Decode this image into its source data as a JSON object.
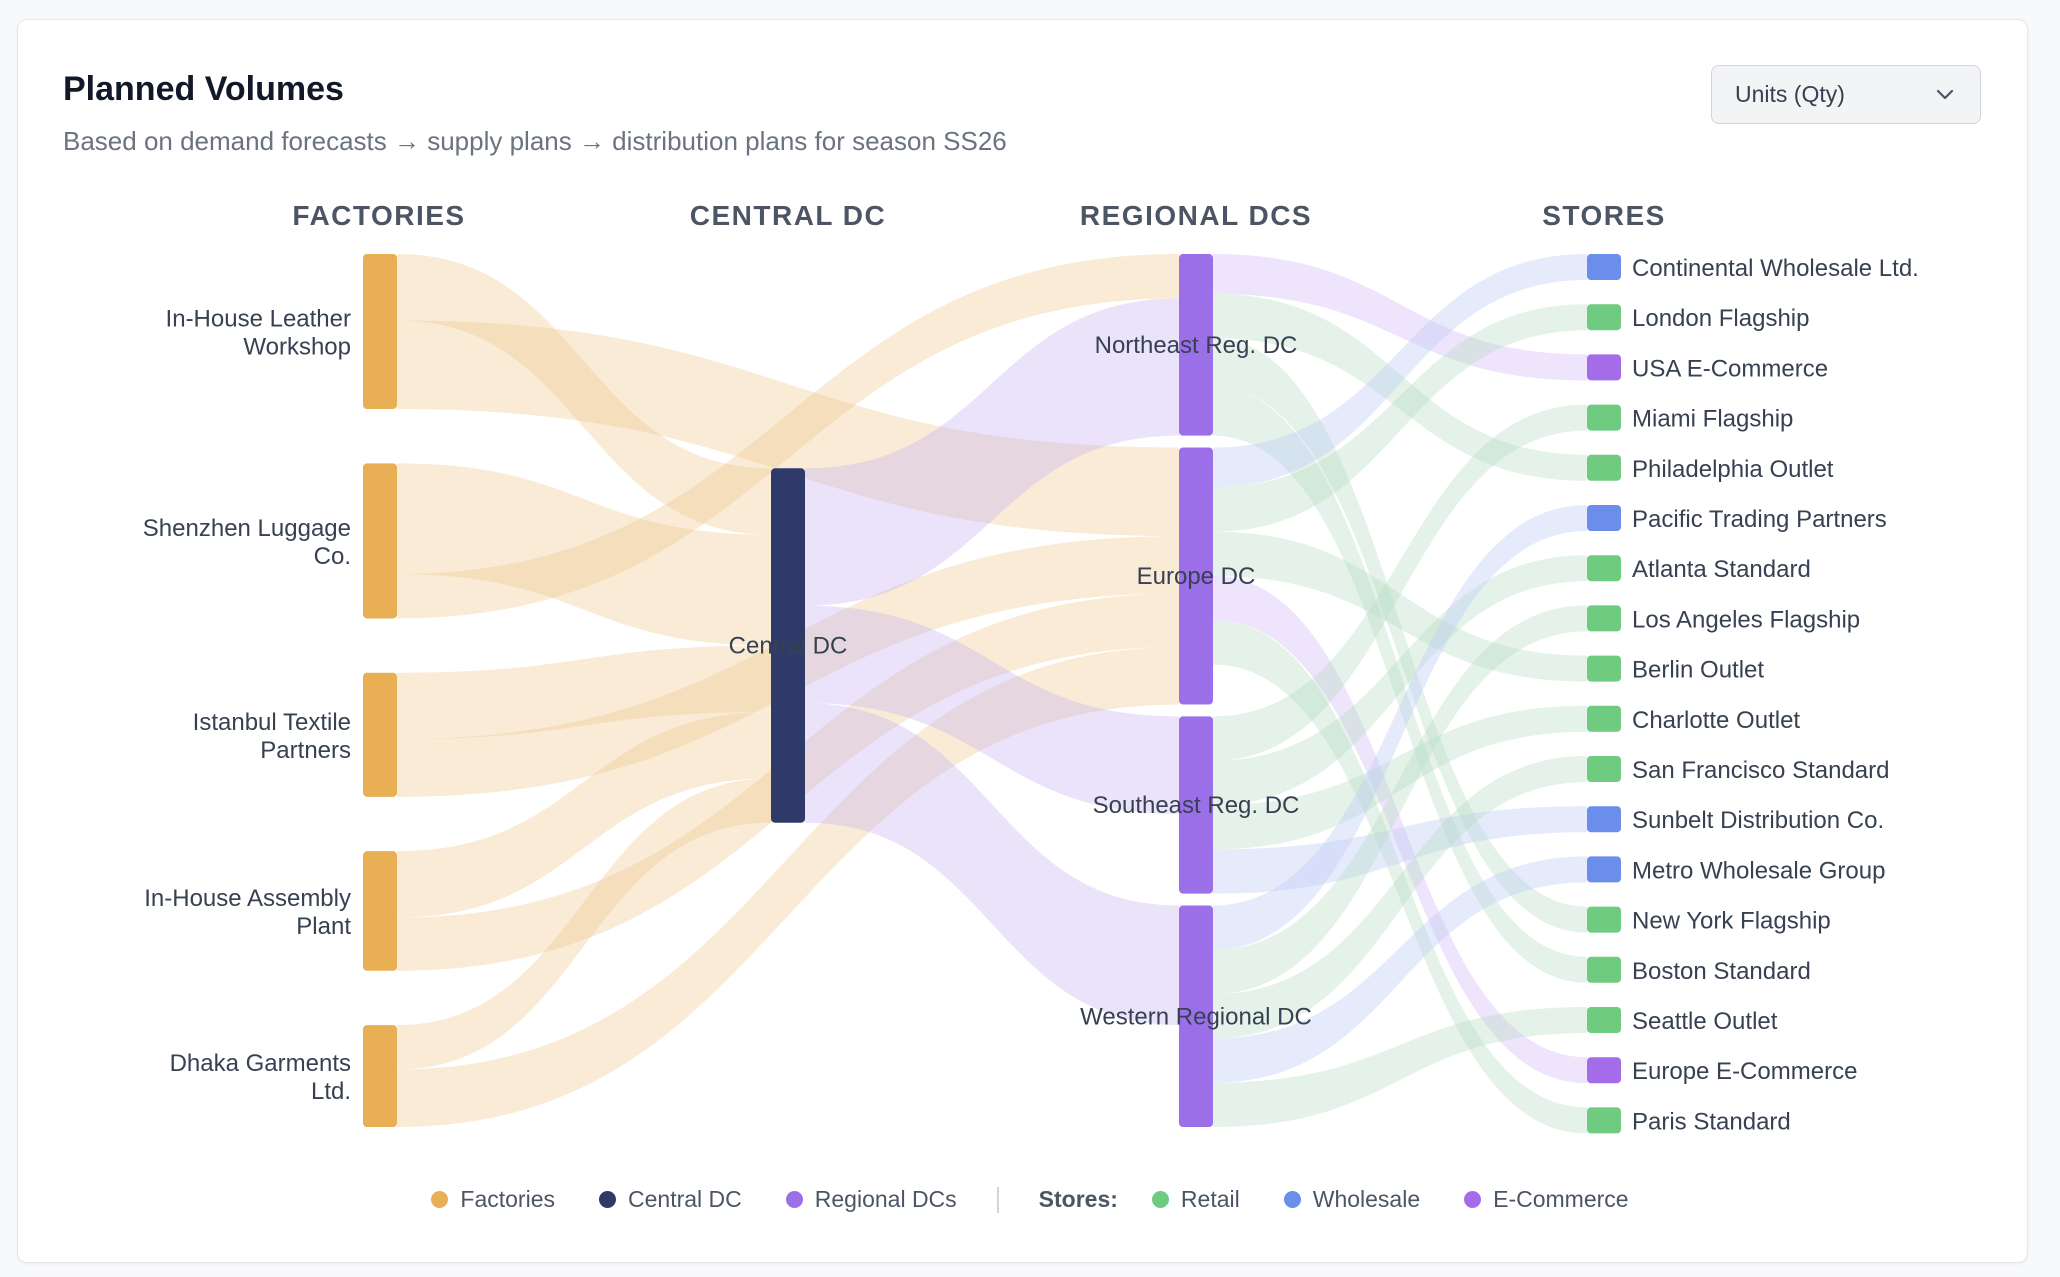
{
  "header": {
    "title": "Planned Volumes",
    "subtitle": "Based on demand forecasts → supply plans → distribution plans for season SS26",
    "unit_select": {
      "value": "Units (Qty)"
    }
  },
  "colors": {
    "factory": "#E8AF55",
    "central": "#2F3A6B",
    "regional": "#9B6FE8",
    "retail": "#6FCB7F",
    "wholesale": "#6B8EEA",
    "ecommerce": "#A56CEA",
    "link_factory": "#EFC68A",
    "link_central": "#B4BAD1",
    "link_regional": "#C9B5F2",
    "link_retail": "#B8DEC6",
    "link_wholesale": "#BCCBF6",
    "link_ecommerce": "#D1B7F4"
  },
  "chart_data": {
    "type": "sankey",
    "title": "Planned Volumes",
    "unit": "Units (Qty)",
    "columns": [
      {
        "id": "factories",
        "label": "FACTORIES"
      },
      {
        "id": "central",
        "label": "CENTRAL DC"
      },
      {
        "id": "regional",
        "label": "REGIONAL DCS"
      },
      {
        "id": "stores",
        "label": "STORES"
      }
    ],
    "nodes": [
      {
        "id": "f1",
        "label": "In-House Leather\nWorkshop",
        "column": 0,
        "type": "factory"
      },
      {
        "id": "f2",
        "label": "Shenzhen Luggage\nCo.",
        "column": 0,
        "type": "factory"
      },
      {
        "id": "f3",
        "label": "Istanbul Textile\nPartners",
        "column": 0,
        "type": "factory"
      },
      {
        "id": "f4",
        "label": "In-House Assembly\nPlant",
        "column": 0,
        "type": "factory"
      },
      {
        "id": "f5",
        "label": "Dhaka Garments\nLtd.",
        "column": 0,
        "type": "factory"
      },
      {
        "id": "c1",
        "label": "Central DC",
        "column": 1,
        "type": "central"
      },
      {
        "id": "r1",
        "label": "Northeast Reg. DC",
        "column": 2,
        "type": "regional"
      },
      {
        "id": "r2",
        "label": "Europe DC",
        "column": 2,
        "type": "regional"
      },
      {
        "id": "r3",
        "label": "Southeast Reg. DC",
        "column": 2,
        "type": "regional"
      },
      {
        "id": "r4",
        "label": "Western Regional DC",
        "column": 2,
        "type": "regional"
      },
      {
        "id": "s1",
        "label": "Continental Wholesale Ltd.",
        "column": 3,
        "type": "wholesale"
      },
      {
        "id": "s2",
        "label": "London Flagship",
        "column": 3,
        "type": "retail"
      },
      {
        "id": "s3",
        "label": "USA E-Commerce",
        "column": 3,
        "type": "ecommerce"
      },
      {
        "id": "s4",
        "label": "Miami Flagship",
        "column": 3,
        "type": "retail"
      },
      {
        "id": "s5",
        "label": "Philadelphia Outlet",
        "column": 3,
        "type": "retail"
      },
      {
        "id": "s6",
        "label": "Pacific Trading Partners",
        "column": 3,
        "type": "wholesale"
      },
      {
        "id": "s7",
        "label": "Atlanta Standard",
        "column": 3,
        "type": "retail"
      },
      {
        "id": "s8",
        "label": "Los Angeles Flagship",
        "column": 3,
        "type": "retail"
      },
      {
        "id": "s9",
        "label": "Berlin Outlet",
        "column": 3,
        "type": "retail"
      },
      {
        "id": "s10",
        "label": "Charlotte Outlet",
        "column": 3,
        "type": "retail"
      },
      {
        "id": "s11",
        "label": "San Francisco Standard",
        "column": 3,
        "type": "retail"
      },
      {
        "id": "s12",
        "label": "Sunbelt Distribution Co.",
        "column": 3,
        "type": "wholesale"
      },
      {
        "id": "s13",
        "label": "Metro Wholesale Group",
        "column": 3,
        "type": "wholesale"
      },
      {
        "id": "s14",
        "label": "New York Flagship",
        "column": 3,
        "type": "retail"
      },
      {
        "id": "s15",
        "label": "Boston Standard",
        "column": 3,
        "type": "retail"
      },
      {
        "id": "s16",
        "label": "Seattle Outlet",
        "column": 3,
        "type": "retail"
      },
      {
        "id": "s17",
        "label": "Europe E-Commerce",
        "column": 3,
        "type": "ecommerce"
      },
      {
        "id": "s18",
        "label": "Paris Standard",
        "column": 3,
        "type": "retail"
      }
    ],
    "links": [
      {
        "source": "f1",
        "target": "c1",
        "value": 15
      },
      {
        "source": "f1",
        "target": "r2",
        "value": 20
      },
      {
        "source": "f2",
        "target": "c1",
        "value": 25
      },
      {
        "source": "f2",
        "target": "r1",
        "value": 10
      },
      {
        "source": "f3",
        "target": "c1",
        "value": 15
      },
      {
        "source": "f3",
        "target": "r2",
        "value": 13
      },
      {
        "source": "f4",
        "target": "c1",
        "value": 15
      },
      {
        "source": "f4",
        "target": "r2",
        "value": 12
      },
      {
        "source": "f5",
        "target": "c1",
        "value": 10
      },
      {
        "source": "f5",
        "target": "r2",
        "value": 13
      },
      {
        "source": "c1",
        "target": "r1",
        "value": 31
      },
      {
        "source": "c1",
        "target": "r3",
        "value": 22
      },
      {
        "source": "c1",
        "target": "r4",
        "value": 27
      },
      {
        "source": "r1",
        "target": "s3",
        "value": 9
      },
      {
        "source": "r1",
        "target": "s5",
        "value": 10
      },
      {
        "source": "r1",
        "target": "s14",
        "value": 11
      },
      {
        "source": "r1",
        "target": "s15",
        "value": 11
      },
      {
        "source": "r2",
        "target": "s1",
        "value": 9
      },
      {
        "source": "r2",
        "target": "s2",
        "value": 10
      },
      {
        "source": "r2",
        "target": "s9",
        "value": 10
      },
      {
        "source": "r2",
        "target": "s17",
        "value": 10
      },
      {
        "source": "r2",
        "target": "s18",
        "value": 10
      },
      {
        "source": "r3",
        "target": "s4",
        "value": 10
      },
      {
        "source": "r3",
        "target": "s7",
        "value": 10
      },
      {
        "source": "r3",
        "target": "s10",
        "value": 10
      },
      {
        "source": "r3",
        "target": "s12",
        "value": 10
      },
      {
        "source": "r4",
        "target": "s6",
        "value": 10
      },
      {
        "source": "r4",
        "target": "s8",
        "value": 10
      },
      {
        "source": "r4",
        "target": "s11",
        "value": 10
      },
      {
        "source": "r4",
        "target": "s13",
        "value": 10
      },
      {
        "source": "r4",
        "target": "s16",
        "value": 10
      }
    ],
    "legend": {
      "items": [
        {
          "label": "Factories",
          "color_key": "factory"
        },
        {
          "label": "Central DC",
          "color_key": "central"
        },
        {
          "label": "Regional DCs",
          "color_key": "regional"
        }
      ],
      "stores_label": "Stores:",
      "store_items": [
        {
          "label": "Retail",
          "color_key": "retail"
        },
        {
          "label": "Wholesale",
          "color_key": "wholesale"
        },
        {
          "label": "E-Commerce",
          "color_key": "ecommerce"
        }
      ]
    }
  }
}
